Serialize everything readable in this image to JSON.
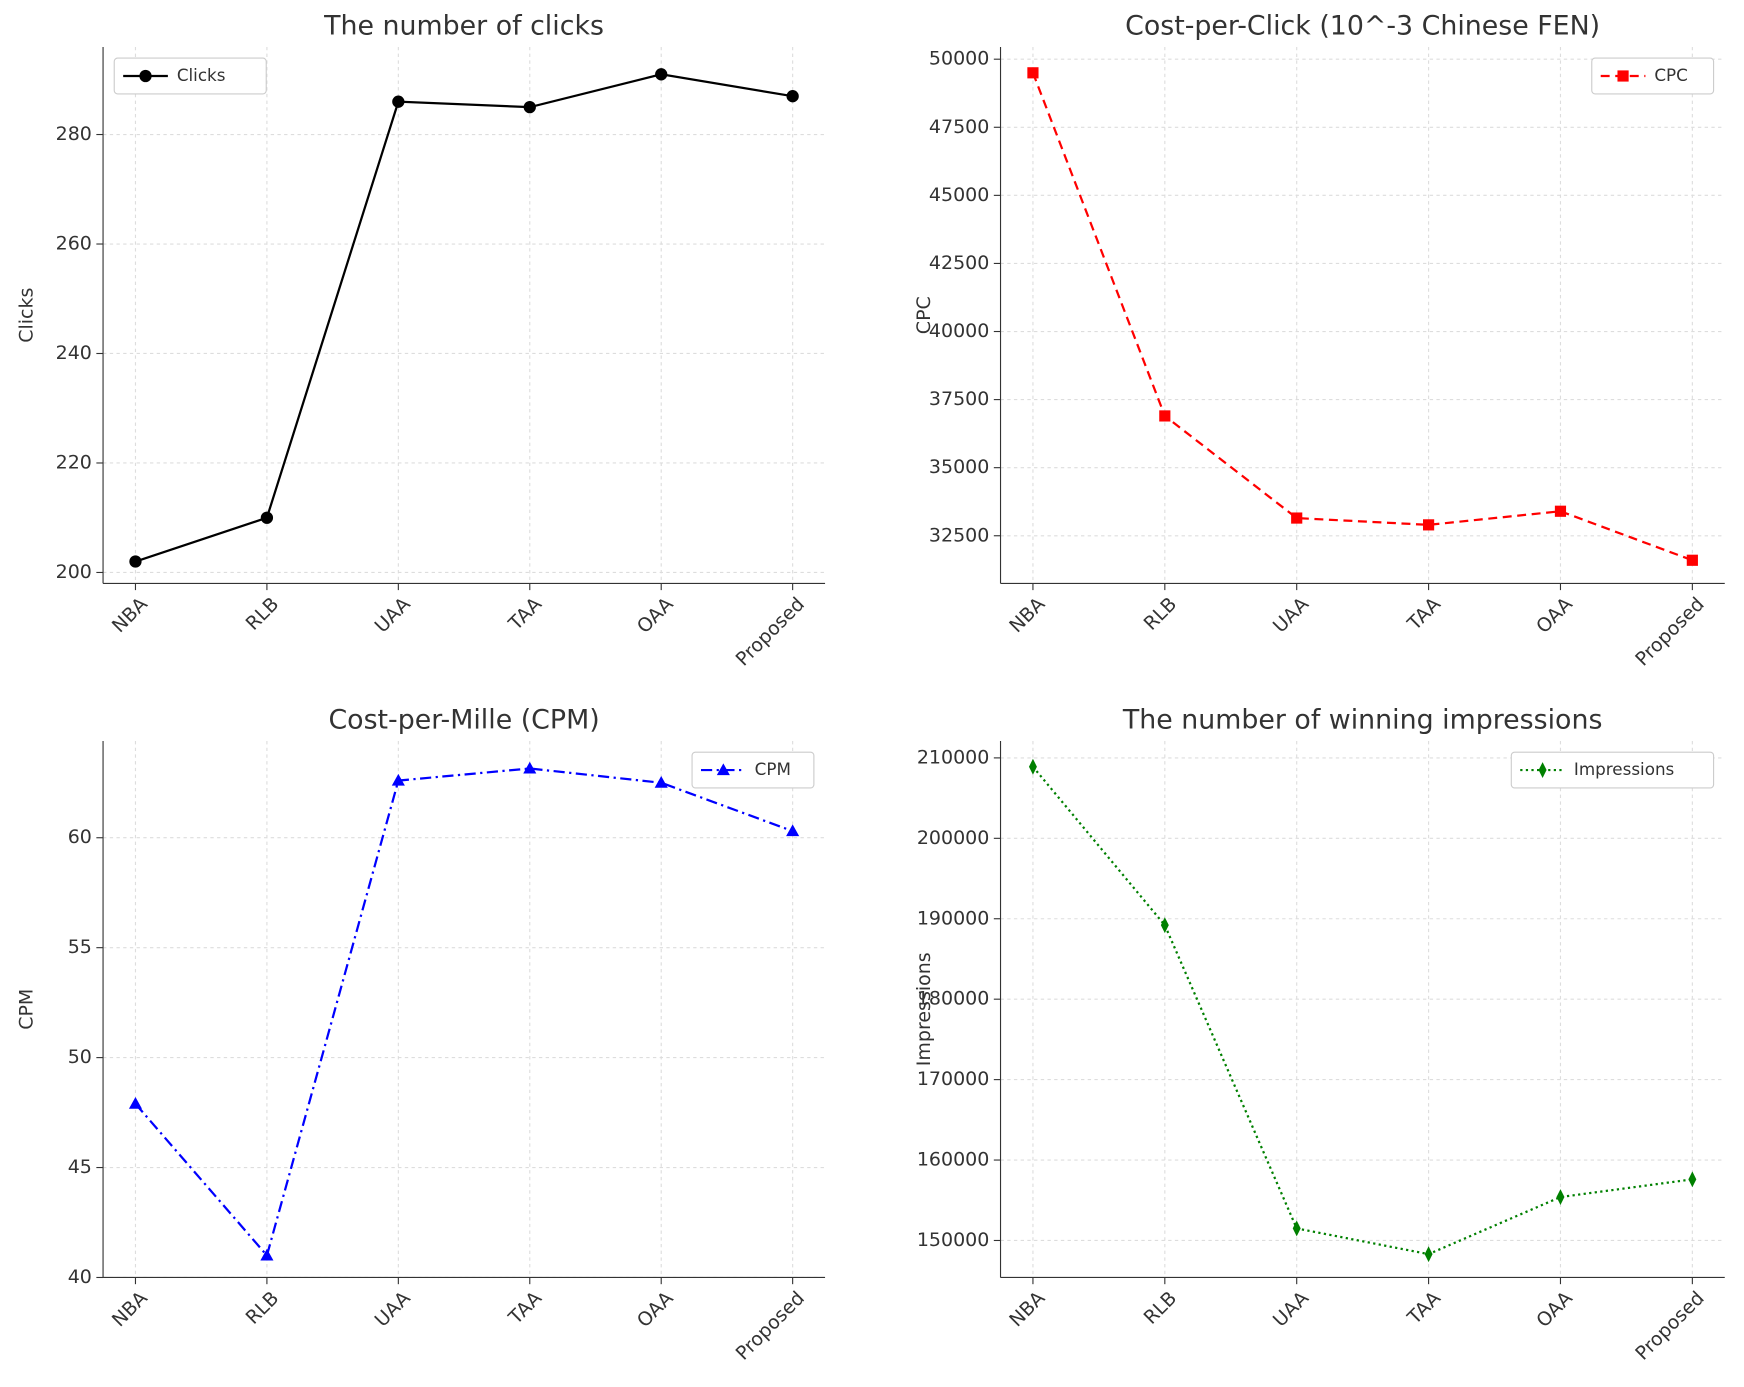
{
  "chart_data": [
    {
      "type": "line",
      "title": "The number of clicks",
      "y_label": "Clicks",
      "categories": [
        "NBA",
        "RLB",
        "UAA",
        "TAA",
        "OAA",
        "Proposed"
      ],
      "series": [
        {
          "name": "Clicks",
          "color": "#000000",
          "marker": "circle",
          "linestyle": "solid",
          "values": [
            202,
            210,
            286,
            285,
            291,
            287
          ]
        }
      ],
      "ylim": [
        198,
        296
      ],
      "yticks": [
        200,
        220,
        240,
        260,
        280
      ],
      "grid": true,
      "legend": "upper left"
    },
    {
      "type": "line",
      "title": "Cost-per-Click (10^-3 Chinese FEN)",
      "y_label": "CPC",
      "categories": [
        "NBA",
        "RLB",
        "UAA",
        "TAA",
        "OAA",
        "Proposed"
      ],
      "series": [
        {
          "name": "CPC",
          "color": "#ff0000",
          "marker": "square",
          "linestyle": "dashed",
          "values": [
            49500,
            36900,
            33150,
            32900,
            33400,
            31600
          ]
        }
      ],
      "ylim": [
        30750,
        50450
      ],
      "yticks": [
        32500,
        35000,
        37500,
        40000,
        42500,
        45000,
        47500,
        50000
      ],
      "grid": true,
      "legend": "upper right"
    },
    {
      "type": "line",
      "title": "Cost-per-Mille (CPM)",
      "y_label": "CPM",
      "categories": [
        "NBA",
        "RLB",
        "UAA",
        "TAA",
        "OAA",
        "Proposed"
      ],
      "series": [
        {
          "name": "CPM",
          "color": "#0000ff",
          "marker": "triangle",
          "linestyle": "dashdot",
          "values": [
            47.9,
            41.0,
            62.6,
            63.15,
            62.5,
            60.3
          ]
        }
      ],
      "ylim": [
        40,
        64.4
      ],
      "yticks": [
        40,
        45,
        50,
        55,
        60
      ],
      "grid": true,
      "legend": "upper right"
    },
    {
      "type": "line",
      "title": "The number of winning impressions",
      "y_label": "Impressions",
      "categories": [
        "NBA",
        "RLB",
        "UAA",
        "TAA",
        "OAA",
        "Proposed"
      ],
      "series": [
        {
          "name": "Impressions",
          "color": "#008000",
          "marker": "thin_diamond",
          "linestyle": "dotted",
          "values": [
            208900,
            189200,
            151500,
            148300,
            155400,
            157600
          ]
        }
      ],
      "ylim": [
        145400,
        212100
      ],
      "yticks": [
        150000,
        160000,
        170000,
        180000,
        190000,
        200000,
        210000
      ],
      "grid": true,
      "legend": "upper right"
    }
  ]
}
